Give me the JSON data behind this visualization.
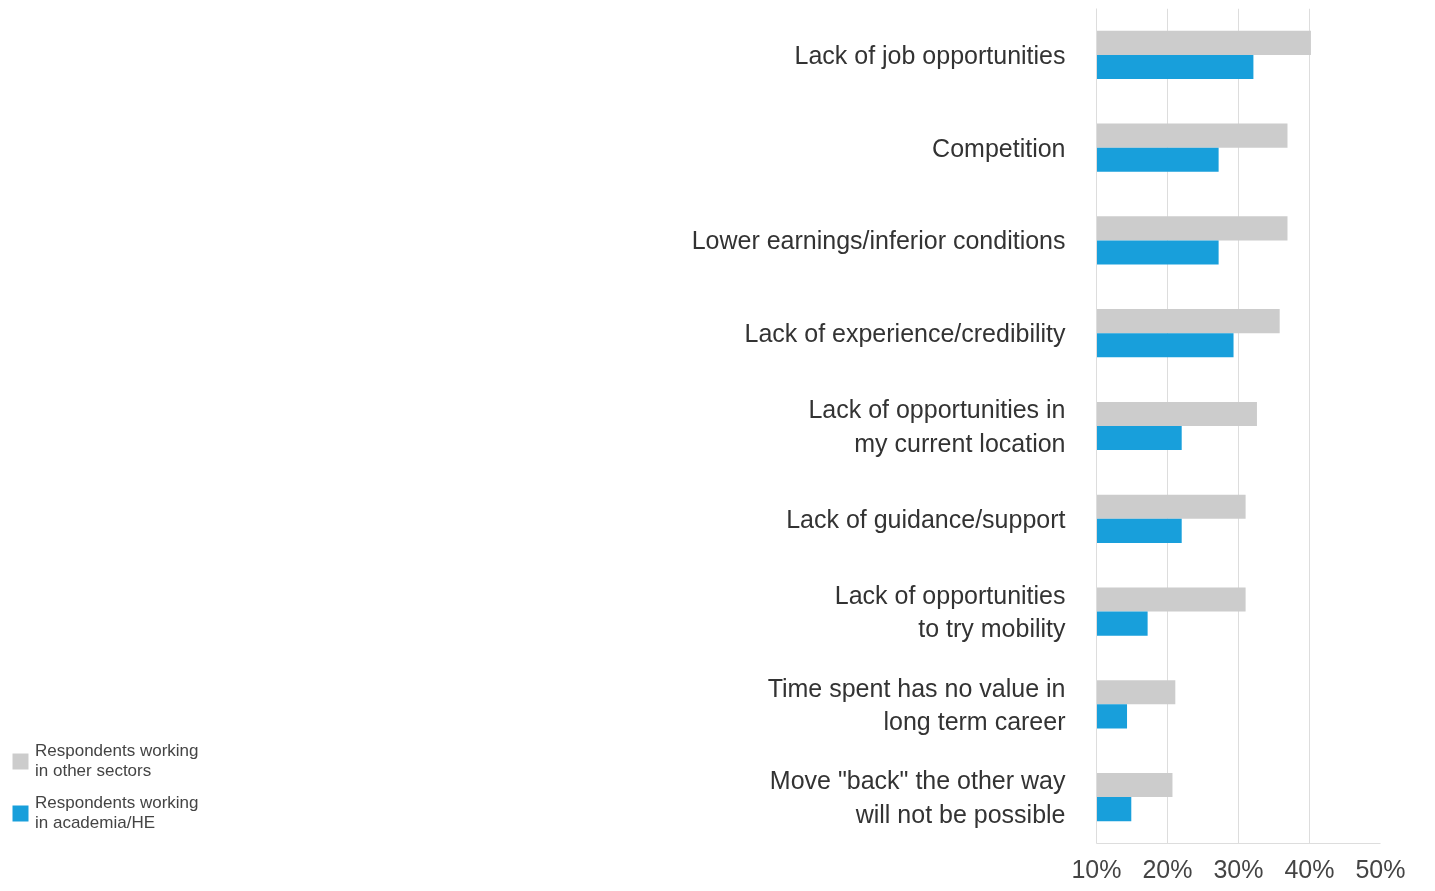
{
  "chart_data": {
    "type": "bar",
    "orientation": "horizontal",
    "categories": [
      "Lack of job opportunities",
      "Competition",
      "Lower earnings/inferior conditions",
      "Lack of experience/credibility",
      "Lack of opportunities in\nmy current location",
      "Lack of guidance/support",
      "Lack of opportunities\nto try mobility",
      "Time spent has no value in\nlong term career",
      "Move \"back\" the other way\nwill not be possible"
    ],
    "series": [
      {
        "name": "Respondents working\nin other sectors",
        "color": "#cccccc",
        "values": [
          40.2,
          36.9,
          36.9,
          35.8,
          32.6,
          31.0,
          31.0,
          21.1,
          20.7
        ]
      },
      {
        "name": "Respondents working\nin academia/HE",
        "color": "#189fdb",
        "values": [
          32.1,
          27.2,
          27.2,
          29.3,
          22.0,
          22.0,
          17.2,
          14.3,
          14.9
        ]
      }
    ],
    "xlim": [
      10,
      50
    ],
    "xticks": [
      {
        "value": 10,
        "label": "10%"
      },
      {
        "value": 20,
        "label": "20%"
      },
      {
        "value": 30,
        "label": "30%"
      },
      {
        "value": 40,
        "label": "40%"
      },
      {
        "value": 50,
        "label": "50%"
      }
    ],
    "grid": "x",
    "legend": "bottom left"
  }
}
